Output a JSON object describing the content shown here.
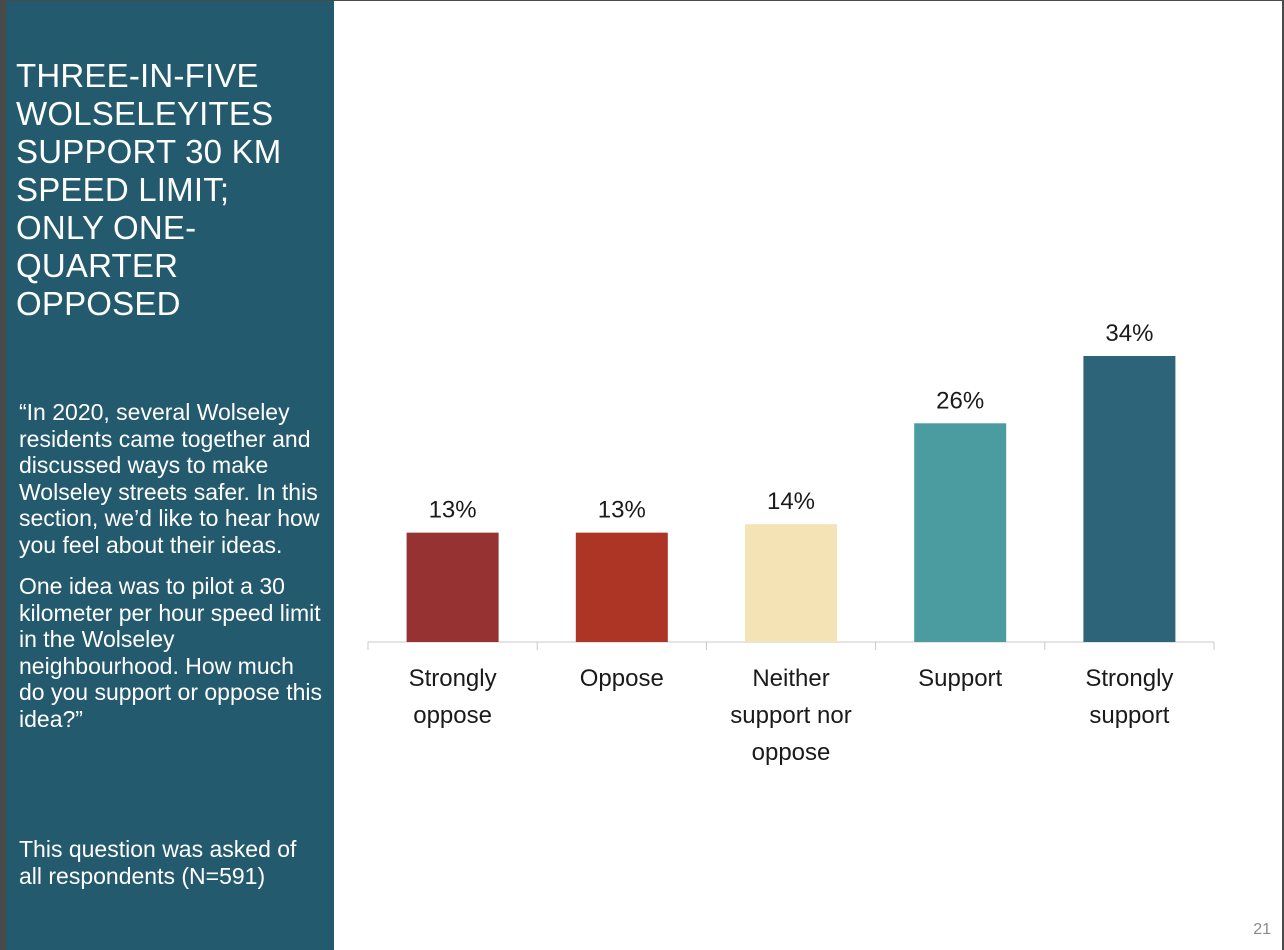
{
  "sidebar": {
    "title": "THREE-IN-FIVE WOLSELEYITES SUPPORT 30 KM SPEED LIMIT; ONLY ONE-QUARTER OPPOSED",
    "question_p1": "“In 2020, several Wolseley residents came together and discussed ways to make Wolseley streets safer. In this section, we’d like to hear how you feel about their ideas.",
    "question_p2": "One idea was to pilot a 30 kilometer per hour speed limit in the Wolseley neighbourhood. How much do you support or oppose this idea?”",
    "note": "This question was asked of all respondents (N=591)"
  },
  "page_number": "21",
  "chart_data": {
    "type": "bar",
    "categories": [
      [
        "Strongly",
        "oppose"
      ],
      [
        "Oppose"
      ],
      [
        "Neither",
        "support nor",
        "oppose"
      ],
      [
        "Support"
      ],
      [
        "Strongly",
        "support"
      ]
    ],
    "values": [
      13,
      13,
      14,
      26,
      34
    ],
    "value_labels": [
      "13%",
      "13%",
      "14%",
      "26%",
      "34%"
    ],
    "colors": [
      "#973232",
      "#ad3526",
      "#f3e3b5",
      "#4a9ca1",
      "#2d6479"
    ],
    "ylim": [
      0,
      34
    ],
    "grid": false,
    "legend": "none"
  }
}
